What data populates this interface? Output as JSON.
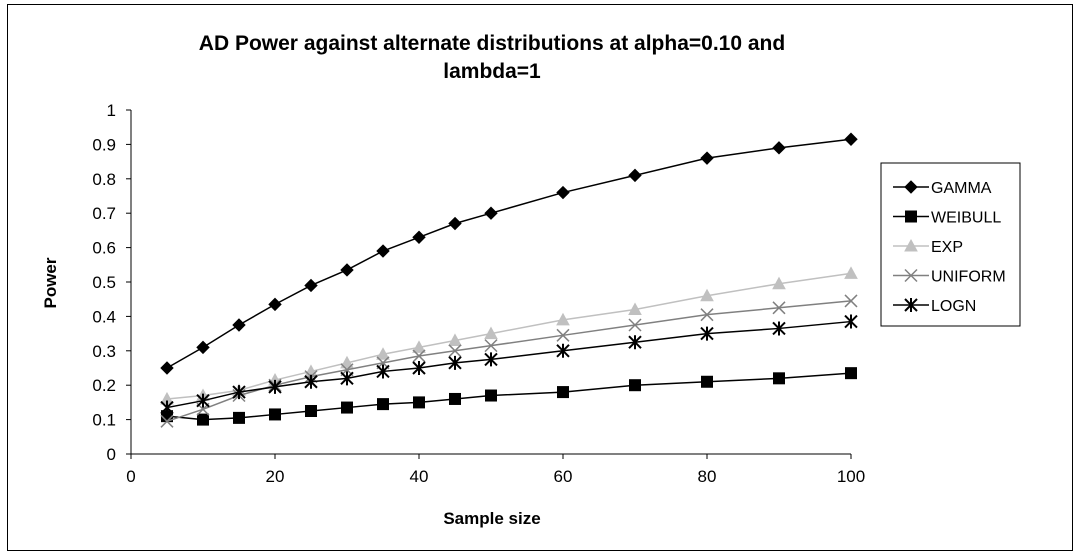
{
  "chart_data": {
    "type": "line",
    "title_line1": "AD Power against alternate distributions at alpha=0.10 and",
    "title_line2": "lambda=1",
    "xlabel": "Sample size",
    "ylabel": "Power",
    "xlim": [
      0,
      100
    ],
    "ylim": [
      0,
      1
    ],
    "xticks": [
      0,
      20,
      40,
      60,
      80,
      100
    ],
    "yticks": [
      0,
      0.1,
      0.2,
      0.3,
      0.4,
      0.5,
      0.6,
      0.7,
      0.8,
      0.9,
      1
    ],
    "grid": false,
    "legend_position": "right",
    "x": [
      5,
      10,
      15,
      20,
      25,
      30,
      35,
      40,
      45,
      50,
      60,
      70,
      80,
      90,
      100
    ],
    "series": [
      {
        "name": "GAMMA",
        "color": "#000000",
        "marker": "diamond",
        "values": [
          0.25,
          0.31,
          0.375,
          0.435,
          0.49,
          0.535,
          0.59,
          0.63,
          0.67,
          0.7,
          0.76,
          0.81,
          0.86,
          0.89,
          0.915
        ]
      },
      {
        "name": "WEIBULL",
        "color": "#000000",
        "marker": "square",
        "values": [
          0.11,
          0.1,
          0.105,
          0.115,
          0.125,
          0.135,
          0.145,
          0.15,
          0.16,
          0.17,
          0.18,
          0.2,
          0.21,
          0.22,
          0.235
        ]
      },
      {
        "name": "EXP",
        "color": "#c0c0c0",
        "marker": "triangle",
        "values": [
          0.16,
          0.17,
          0.185,
          0.215,
          0.24,
          0.265,
          0.29,
          0.31,
          0.33,
          0.35,
          0.39,
          0.42,
          0.46,
          0.495,
          0.525
        ]
      },
      {
        "name": "UNIFORM",
        "color": "#808080",
        "marker": "x",
        "values": [
          0.095,
          0.13,
          0.17,
          0.2,
          0.225,
          0.245,
          0.265,
          0.285,
          0.3,
          0.315,
          0.345,
          0.375,
          0.405,
          0.425,
          0.445
        ]
      },
      {
        "name": "LOGN",
        "color": "#000000",
        "marker": "asterisk",
        "values": [
          0.135,
          0.155,
          0.18,
          0.195,
          0.21,
          0.22,
          0.24,
          0.25,
          0.265,
          0.275,
          0.3,
          0.325,
          0.35,
          0.365,
          0.385
        ]
      }
    ]
  }
}
